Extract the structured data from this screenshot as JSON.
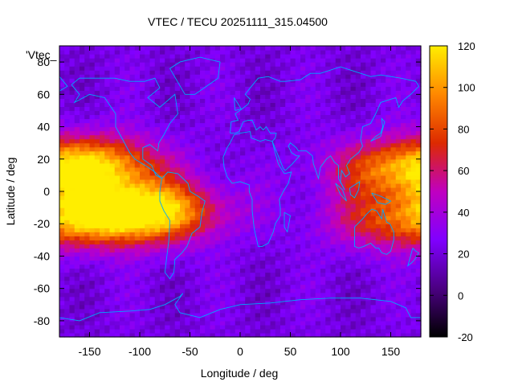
{
  "chart_data": {
    "type": "heatmap",
    "title": "VTEC / TECU 20251111_315.04500",
    "xlabel": "Longitude / deg",
    "ylabel": "Latitude / deg",
    "xlim": [
      -180,
      180
    ],
    "ylim": [
      -90,
      90
    ],
    "xticks": [
      -150,
      -100,
      -50,
      0,
      50,
      100,
      150
    ],
    "yticks": [
      -80,
      -60,
      -40,
      -20,
      0,
      20,
      40,
      60,
      80
    ],
    "legend_key": "'Vtec_",
    "colorbar": {
      "min": -20,
      "max": 120,
      "ticks": [
        -20,
        0,
        20,
        40,
        60,
        80,
        100,
        120
      ],
      "colors": [
        "#000000",
        "#4b0082",
        "#8000ff",
        "#c000c0",
        "#dd2a00",
        "#ff8800",
        "#ffee00"
      ]
    },
    "overlay_color": "#00a8ff",
    "grid_lon_step": 5,
    "grid_lat_step": 2.5,
    "crest_peaks": [
      {
        "lon": -140,
        "lat": 16,
        "value": 100
      },
      {
        "lon": -130,
        "lat": -14,
        "value": 105
      },
      {
        "lon": -75,
        "lat": -12,
        "value": 85
      },
      {
        "lon": 150,
        "lat": 14,
        "value": 80
      },
      {
        "lon": 150,
        "lat": -18,
        "value": 70
      }
    ]
  }
}
